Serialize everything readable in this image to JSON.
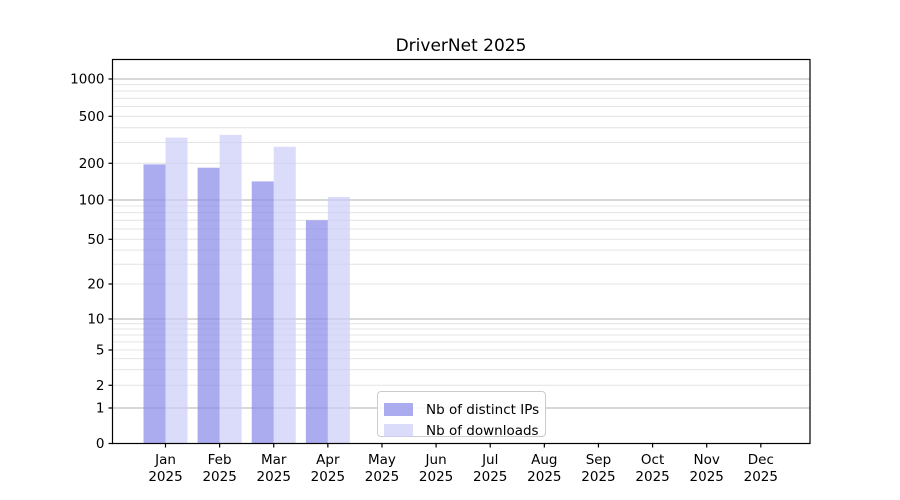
{
  "chart_data": {
    "type": "bar",
    "title": "DriverNet 2025",
    "categories": [
      "Jan",
      "Feb",
      "Mar",
      "Apr",
      "May",
      "Jun",
      "Jul",
      "Aug",
      "Sep",
      "Oct",
      "Nov",
      "Dec"
    ],
    "x_tick_year": "2025",
    "series": [
      {
        "name": "Nb of distinct IPs",
        "color": "#8787ea",
        "values": [
          196,
          184,
          142,
          70,
          0,
          0,
          0,
          0,
          0,
          0,
          0,
          0
        ]
      },
      {
        "name": "Nb of downloads",
        "color": "#ccccf8",
        "values": [
          330,
          348,
          276,
          106,
          0,
          0,
          0,
          0,
          0,
          0,
          0,
          0
        ]
      }
    ],
    "yticks": [
      0,
      1,
      2,
      5,
      10,
      20,
      50,
      100,
      200,
      500,
      1000
    ],
    "yscale": "log-with-zero",
    "ylim": [
      0,
      1460
    ],
    "xlabel": "",
    "ylabel": "",
    "grid": true,
    "legend_position": "inside-bottom-center",
    "bar_alpha": 0.7
  },
  "colors": {
    "background": "#ffffff",
    "major_gridline": "#b2b2b2",
    "minor_gridline": "#e4e4e4",
    "spine": "#000000",
    "tick_text": "#000000",
    "legend_border": "#cccccc"
  }
}
